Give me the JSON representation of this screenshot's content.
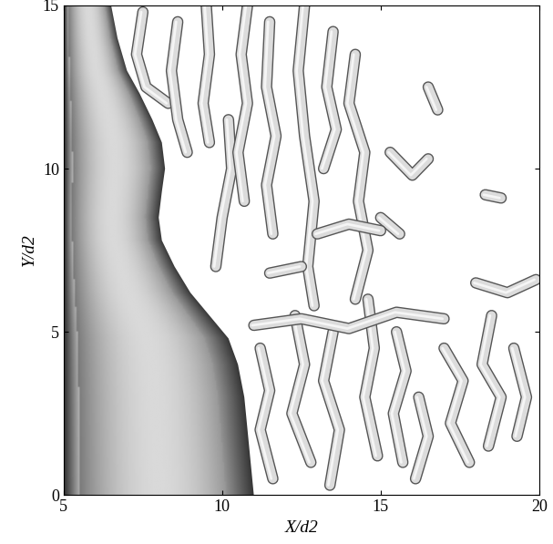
{
  "chart_data": {
    "type": "isosurface",
    "x_label": "X/d2",
    "y_label": "Y/d2",
    "xlim": [
      5,
      20
    ],
    "ylim": [
      0,
      15
    ],
    "xticks": [
      5,
      10,
      15,
      20
    ],
    "yticks": [
      0,
      5,
      10,
      15
    ],
    "jet_edge": {
      "y": [
        0,
        1,
        2,
        3,
        4,
        4.8,
        5.5,
        6.2,
        7,
        7.8,
        8.5,
        9.3,
        10,
        10.8,
        11.5,
        12.3,
        13,
        14,
        15
      ],
      "x": [
        11.0,
        10.9,
        10.8,
        10.7,
        10.5,
        10.2,
        9.6,
        9.0,
        8.5,
        8.1,
        8.0,
        8.1,
        8.2,
        8.1,
        7.8,
        7.4,
        7.0,
        6.7,
        6.5
      ]
    },
    "vortices": [
      [
        [
          7.5,
          14.8
        ],
        [
          7.3,
          13.5
        ],
        [
          7.6,
          12.5
        ],
        [
          8.3,
          12.0
        ]
      ],
      [
        [
          8.6,
          14.5
        ],
        [
          8.4,
          13.0
        ],
        [
          8.6,
          11.5
        ],
        [
          8.9,
          10.5
        ]
      ],
      [
        [
          9.5,
          15.0
        ],
        [
          9.6,
          13.5
        ],
        [
          9.4,
          12.0
        ],
        [
          9.6,
          10.8
        ]
      ],
      [
        [
          10.2,
          11.5
        ],
        [
          10.3,
          10.0
        ],
        [
          10.0,
          8.5
        ],
        [
          9.8,
          7.0
        ]
      ],
      [
        [
          10.8,
          15.0
        ],
        [
          10.6,
          13.5
        ],
        [
          10.8,
          12.0
        ],
        [
          10.5,
          10.5
        ],
        [
          10.7,
          9.0
        ]
      ],
      [
        [
          11.5,
          14.5
        ],
        [
          11.4,
          12.5
        ],
        [
          11.7,
          11.0
        ],
        [
          11.4,
          9.5
        ],
        [
          11.6,
          8.0
        ]
      ],
      [
        [
          12.6,
          15.0
        ],
        [
          12.4,
          13.0
        ],
        [
          12.6,
          11.0
        ],
        [
          12.9,
          9.0
        ],
        [
          12.7,
          7.0
        ],
        [
          12.9,
          5.8
        ]
      ],
      [
        [
          13.5,
          14.2
        ],
        [
          13.3,
          12.5
        ],
        [
          13.6,
          11.2
        ],
        [
          13.2,
          10.0
        ]
      ],
      [
        [
          14.2,
          13.5
        ],
        [
          14.0,
          12.0
        ],
        [
          14.5,
          10.5
        ],
        [
          14.3,
          9.0
        ],
        [
          14.6,
          7.5
        ],
        [
          14.2,
          6.0
        ]
      ],
      [
        [
          11.2,
          4.5
        ],
        [
          11.5,
          3.2
        ],
        [
          11.2,
          2.0
        ],
        [
          11.6,
          0.5
        ]
      ],
      [
        [
          12.3,
          5.5
        ],
        [
          12.6,
          4.0
        ],
        [
          12.2,
          2.5
        ],
        [
          12.8,
          1.0
        ]
      ],
      [
        [
          13.5,
          5.0
        ],
        [
          13.2,
          3.5
        ],
        [
          13.7,
          2.0
        ],
        [
          13.4,
          0.3
        ]
      ],
      [
        [
          14.6,
          6.0
        ],
        [
          14.8,
          4.5
        ],
        [
          14.5,
          3.0
        ],
        [
          14.9,
          1.2
        ]
      ],
      [
        [
          15.5,
          5.0
        ],
        [
          15.8,
          3.8
        ],
        [
          15.4,
          2.5
        ],
        [
          15.7,
          1.0
        ]
      ],
      [
        [
          11.0,
          5.2
        ],
        [
          12.5,
          5.4
        ],
        [
          14.0,
          5.1
        ],
        [
          15.5,
          5.6
        ],
        [
          17.0,
          5.4
        ]
      ],
      [
        [
          16.2,
          3.0
        ],
        [
          16.5,
          1.8
        ],
        [
          16.1,
          0.5
        ]
      ],
      [
        [
          17.0,
          4.5
        ],
        [
          17.6,
          3.5
        ],
        [
          17.2,
          2.2
        ],
        [
          17.8,
          1.0
        ]
      ],
      [
        [
          18.5,
          5.5
        ],
        [
          18.2,
          4.0
        ],
        [
          18.8,
          3.0
        ],
        [
          18.4,
          1.5
        ]
      ],
      [
        [
          19.2,
          4.5
        ],
        [
          19.6,
          3.0
        ],
        [
          19.3,
          1.8
        ]
      ],
      [
        [
          18.0,
          6.5
        ],
        [
          19.0,
          6.2
        ],
        [
          19.9,
          6.6
        ]
      ],
      [
        [
          15.3,
          10.5
        ],
        [
          16.0,
          9.8
        ],
        [
          16.5,
          10.3
        ]
      ],
      [
        [
          15.0,
          8.5
        ],
        [
          15.6,
          8.0
        ]
      ],
      [
        [
          16.5,
          12.5
        ],
        [
          16.8,
          11.8
        ]
      ],
      [
        [
          18.3,
          9.2
        ],
        [
          18.8,
          9.1
        ]
      ],
      [
        [
          13.0,
          8.0
        ],
        [
          14.0,
          8.3
        ],
        [
          15.0,
          8.1
        ]
      ],
      [
        [
          11.5,
          6.8
        ],
        [
          12.5,
          7.0
        ]
      ]
    ]
  }
}
